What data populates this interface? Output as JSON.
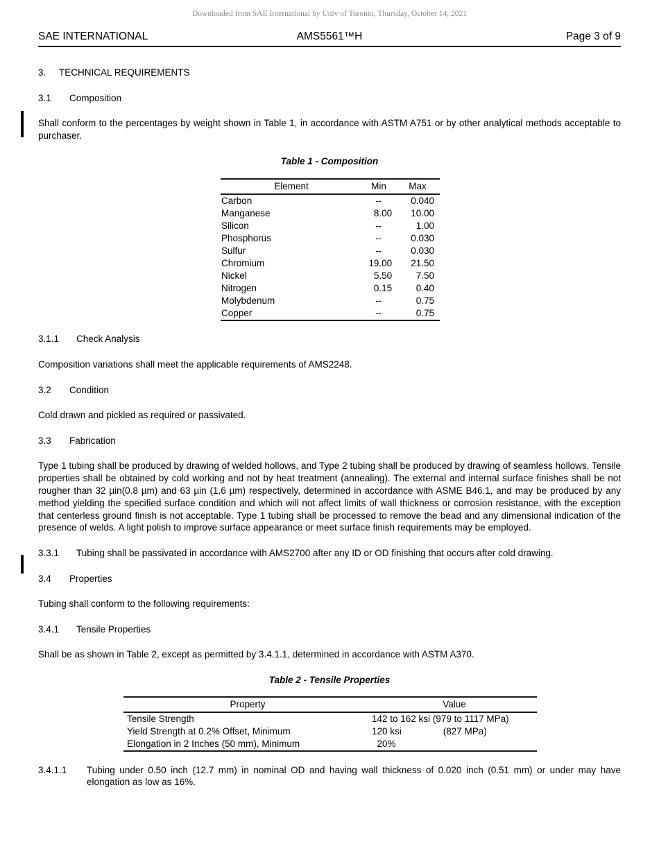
{
  "page": {
    "watermark": "Downloaded from SAE International by Univ of Toronto, Thursday, October 14, 2021",
    "header": {
      "left": "SAE INTERNATIONAL",
      "center": "AMS5561™H",
      "right": "Page 3 of 9"
    }
  },
  "sections": {
    "s3": {
      "num": "3.",
      "title": "TECHNICAL REQUIREMENTS"
    },
    "s31": {
      "num": "3.1",
      "title": "Composition"
    },
    "p31": "Shall conform to the percentages by weight shown in Table 1, in accordance with ASTM A751 or by other analytical methods acceptable to purchaser.",
    "s311": {
      "num": "3.1.1",
      "title": "Check Analysis"
    },
    "p311": "Composition variations shall meet the applicable requirements of AMS2248.",
    "s32": {
      "num": "3.2",
      "title": "Condition"
    },
    "p32": "Cold drawn and pickled as required or passivated.",
    "s33": {
      "num": "3.3",
      "title": "Fabrication"
    },
    "p33": "Type 1 tubing shall be produced by drawing of welded hollows, and Type 2 tubing shall be produced by drawing of seamless hollows. Tensile properties shall be obtained by cold working and not by heat treatment (annealing). The external and internal surface finishes shall be not rougher than 32 µin(0.8 µm) and 63 µin (1.6 µm) respectively, determined in accordance with ASME B46.1, and may be produced by any method yielding the specified surface condition and which will not affect limits of wall thickness or corrosion resistance, with the exception that centerless ground finish is not acceptable. Type 1 tubing shall be processed to remove the bead and any dimensional indication of the presence of welds. A light polish to improve surface appearance or meet surface finish requirements may be employed.",
    "s331": {
      "num": "3.3.1",
      "text": "Tubing shall be passivated in accordance with AMS2700 after any ID or OD finishing that occurs after cold drawing."
    },
    "s34": {
      "num": "3.4",
      "title": "Properties"
    },
    "p34": "Tubing shall conform to the following requirements:",
    "s341": {
      "num": "3.4.1",
      "title": "Tensile Properties"
    },
    "p341": "Shall be as shown in Table 2, except as permitted by 3.4.1.1, determined in accordance with ASTM A370.",
    "s3411": {
      "num": "3.4.1.1",
      "text": "Tubing under 0.50 inch (12.7 mm) in nominal OD and having wall thickness of 0.020 inch (0.51 mm) or under may have elongation as low as 16%."
    }
  },
  "table1": {
    "title": "Table 1 - Composition",
    "headers": {
      "element": "Element",
      "min": "Min",
      "max": "Max"
    },
    "rows": [
      {
        "element": "Carbon",
        "min": "--    ",
        "max": "0.040"
      },
      {
        "element": "Manganese",
        "min": "8.00",
        "max": "10.00"
      },
      {
        "element": "Silicon",
        "min": "--    ",
        "max": "1.00"
      },
      {
        "element": "Phosphorus",
        "min": "--    ",
        "max": "0.030"
      },
      {
        "element": "Sulfur",
        "min": "--    ",
        "max": "0.030"
      },
      {
        "element": "Chromium",
        "min": "19.00",
        "max": "21.50"
      },
      {
        "element": "Nickel",
        "min": "5.50",
        "max": "7.50"
      },
      {
        "element": "Nitrogen",
        "min": "0.15",
        "max": "0.40"
      },
      {
        "element": "Molybdenum",
        "min": "--    ",
        "max": "0.75"
      },
      {
        "element": "Copper",
        "min": "--    ",
        "max": "0.75"
      }
    ]
  },
  "table2": {
    "title": "Table 2 - Tensile Properties",
    "headers": {
      "property": "Property",
      "value": "Value"
    },
    "rows": [
      {
        "property": "Tensile Strength",
        "value": "142 to 162 ksi (979 to 1117 MPa)"
      },
      {
        "property": "Yield Strength at 0.2% Offset, Minimum",
        "value": "120 ksi                (827 MPa)"
      },
      {
        "property": "Elongation in 2 Inches (50 mm), Minimum",
        "value": "  20%"
      }
    ]
  }
}
